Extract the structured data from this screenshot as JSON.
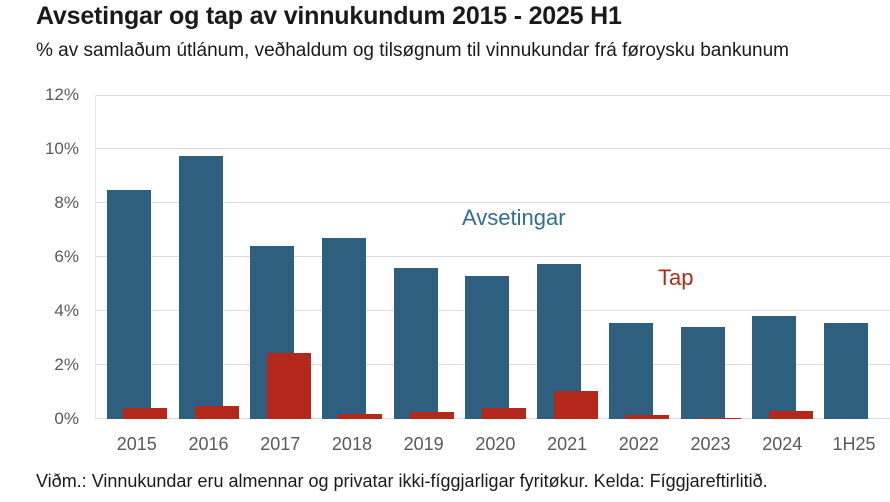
{
  "header": {
    "title": "Avsetingar og tap av vinnukundum 2015 - 2025 H1",
    "subtitle": "% av samlaðum útlánum, veðhaldum og tilsøgnum til vinnukundar frá føroysku bankunum"
  },
  "footer": {
    "note": "Viðm.: Vinnukundar eru almennar og privatar ikki-fíggjarligar fyritøkur. Kelda: Fíggjareftirlitið."
  },
  "chart_data": {
    "type": "bar",
    "title": "Avsetingar og tap av vinnukundum 2015 - 2025 H1",
    "subtitle": "% av samlaðum útlánum, veðhaldum og tilsøgnum til vinnukundar frá føroysku bankunum",
    "categories": [
      "2015",
      "2016",
      "2017",
      "2018",
      "2019",
      "2020",
      "2021",
      "2022",
      "2023",
      "2024",
      "1H25"
    ],
    "series": [
      {
        "name": "Avsetingar",
        "color": "#2e5f7e",
        "values": [
          8.5,
          9.75,
          6.4,
          6.7,
          5.6,
          5.3,
          5.75,
          3.55,
          3.4,
          3.8,
          3.55
        ]
      },
      {
        "name": "Tap",
        "color": "#b3281a",
        "values": [
          0.4,
          0.5,
          2.45,
          0.2,
          0.25,
          0.4,
          1.05,
          0.15,
          0.05,
          0.3,
          0
        ]
      }
    ],
    "ylim": [
      0,
      12
    ],
    "yticks": [
      0,
      2,
      4,
      6,
      8,
      10,
      12
    ],
    "yticklabels": [
      "0%",
      "2%",
      "4%",
      "6%",
      "8%",
      "10%",
      "12%"
    ],
    "xlabel": "",
    "ylabel": "",
    "grid": true,
    "legend_position": "in-plot text labels",
    "series_labels": [
      {
        "text": "Avsetingar",
        "color": "#336e91",
        "x": 366,
        "y": 110
      },
      {
        "text": "Tap",
        "color": "#b3281a",
        "x": 562,
        "y": 170
      }
    ],
    "note": "Viðm.: Vinnukundar eru almennar og privatar ikki-fíggjarligar fyritøkur. Kelda: Fíggjareftirlitið."
  }
}
